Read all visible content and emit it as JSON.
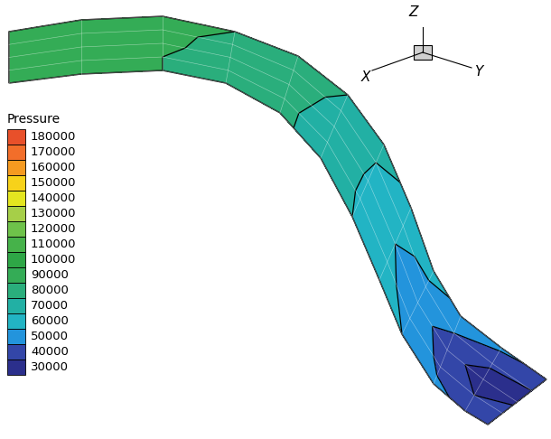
{
  "chart_data": {
    "type": "contour",
    "colorbar_title": "Pressure",
    "levels": [
      30000,
      40000,
      50000,
      60000,
      70000,
      80000,
      90000,
      100000,
      110000,
      120000,
      130000,
      140000,
      150000,
      160000,
      170000,
      180000
    ],
    "colors": [
      "#2b2f8c",
      "#3346a8",
      "#2394dc",
      "#22b4c4",
      "#22b0a4",
      "#2aae7c",
      "#34ac56",
      "#2ea646",
      "#46b24a",
      "#6ec24a",
      "#a6cf48",
      "#e4e620",
      "#f7d21a",
      "#f59a20",
      "#f26e2a",
      "#e8502a"
    ],
    "axis_labels": [
      "X",
      "Y",
      "Z"
    ],
    "cells": [
      [
        98000,
        96000,
        93000,
        90000,
        86000,
        80000,
        73000,
        68000,
        63000,
        58000,
        52000,
        48000
      ],
      [
        97000,
        95000,
        92000,
        88000,
        84000,
        78000,
        70000,
        62000,
        58000,
        50000,
        42000,
        40000
      ],
      [
        96000,
        94000,
        91000,
        88000,
        83000,
        77000,
        69000,
        60000,
        55000,
        45000,
        35000,
        38000
      ],
      [
        96000,
        94000,
        90000,
        87000,
        82000,
        76000,
        69000,
        62000,
        57000,
        48000,
        40000,
        45000
      ],
      [
        95000,
        93000,
        90000,
        86000,
        82000,
        76000,
        70000,
        64000,
        60000,
        52000,
        48000,
        50000
      ]
    ]
  }
}
